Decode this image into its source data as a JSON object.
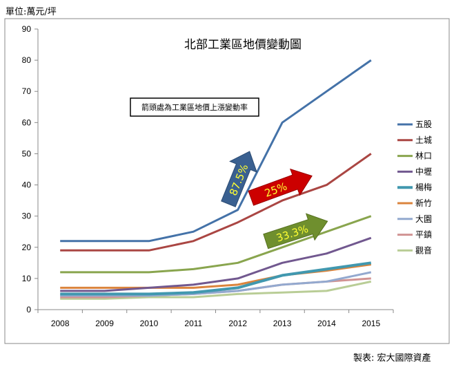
{
  "header": {
    "unit_label": "單位:萬元/坪"
  },
  "footer": {
    "credit": "製表: 宏大國際資產"
  },
  "chart_data": {
    "type": "line",
    "title": "北部工業區地價變動圖",
    "xlabel": "",
    "ylabel": "",
    "categories": [
      "2008",
      "2009",
      "2010",
      "2011",
      "2012",
      "2013",
      "2014",
      "2015"
    ],
    "ylim": [
      0,
      90
    ],
    "yticks": [
      0,
      10,
      20,
      30,
      40,
      50,
      60,
      70,
      80,
      90
    ],
    "grid": false,
    "legend_position": "right",
    "series": [
      {
        "name": "五股",
        "color": "#4472A8",
        "values": [
          22,
          22,
          22,
          25,
          32,
          60,
          70,
          80
        ]
      },
      {
        "name": "土城",
        "color": "#AA4643",
        "values": [
          19,
          19,
          19,
          22,
          28,
          35,
          40,
          50
        ]
      },
      {
        "name": "林口",
        "color": "#89A54E",
        "values": [
          12,
          12,
          12,
          13,
          15,
          20,
          25,
          30
        ]
      },
      {
        "name": "中壢",
        "color": "#71588F",
        "values": [
          6,
          6,
          7,
          8,
          10,
          15,
          18,
          23
        ]
      },
      {
        "name": "楊梅",
        "color": "#4198AF",
        "values": [
          5,
          5,
          5,
          5.5,
          7,
          11,
          13,
          15
        ]
      },
      {
        "name": "新竹",
        "color": "#DB843D",
        "values": [
          7,
          7,
          7,
          7,
          8,
          11,
          12.5,
          14.5
        ]
      },
      {
        "name": "大園",
        "color": "#93A9CF",
        "values": [
          4.5,
          4.5,
          4.5,
          5,
          6,
          8,
          9,
          12
        ]
      },
      {
        "name": "平鎮",
        "color": "#D19392",
        "values": [
          4,
          4,
          4.5,
          5,
          6,
          8,
          9,
          10
        ]
      },
      {
        "name": "觀音",
        "color": "#B9CD96",
        "values": [
          3.5,
          3.5,
          4,
          4,
          5,
          5.5,
          6,
          9
        ]
      }
    ],
    "annotation_box": "箭頭處為工業區地價上漲變動率",
    "arrows": [
      {
        "label": "87.5%",
        "color": "#3A6090",
        "text_color": "#FFFF33"
      },
      {
        "label": "25%",
        "color": "#CC0000",
        "text_color": "#FFFF33"
      },
      {
        "label": "33.3%",
        "color": "#6F8F2E",
        "text_color": "#FFFF33"
      }
    ]
  }
}
